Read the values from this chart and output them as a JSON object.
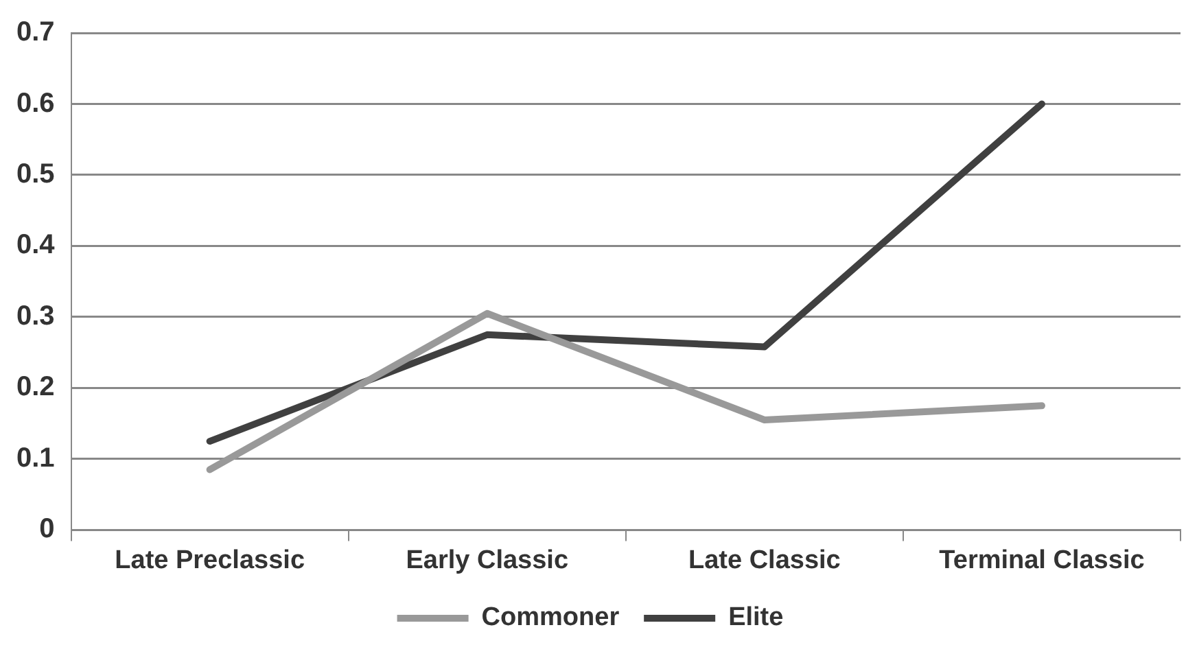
{
  "chart_data": {
    "type": "line",
    "categories": [
      "Late Preclassic",
      "Early Classic",
      "Late Classic",
      "Terminal Classic"
    ],
    "series": [
      {
        "name": "Commoner",
        "color": "#999999",
        "values": [
          0.085,
          0.305,
          0.155,
          0.175
        ]
      },
      {
        "name": "Elite",
        "color": "#404040",
        "values": [
          0.125,
          0.275,
          0.258,
          0.6
        ]
      }
    ],
    "ylim": [
      0,
      0.7
    ],
    "yticks": [
      0,
      0.1,
      0.2,
      0.3,
      0.4,
      0.5,
      0.6,
      0.7
    ],
    "grid": "y",
    "legend": "bottom",
    "marker": "none",
    "line_style": "solid"
  }
}
